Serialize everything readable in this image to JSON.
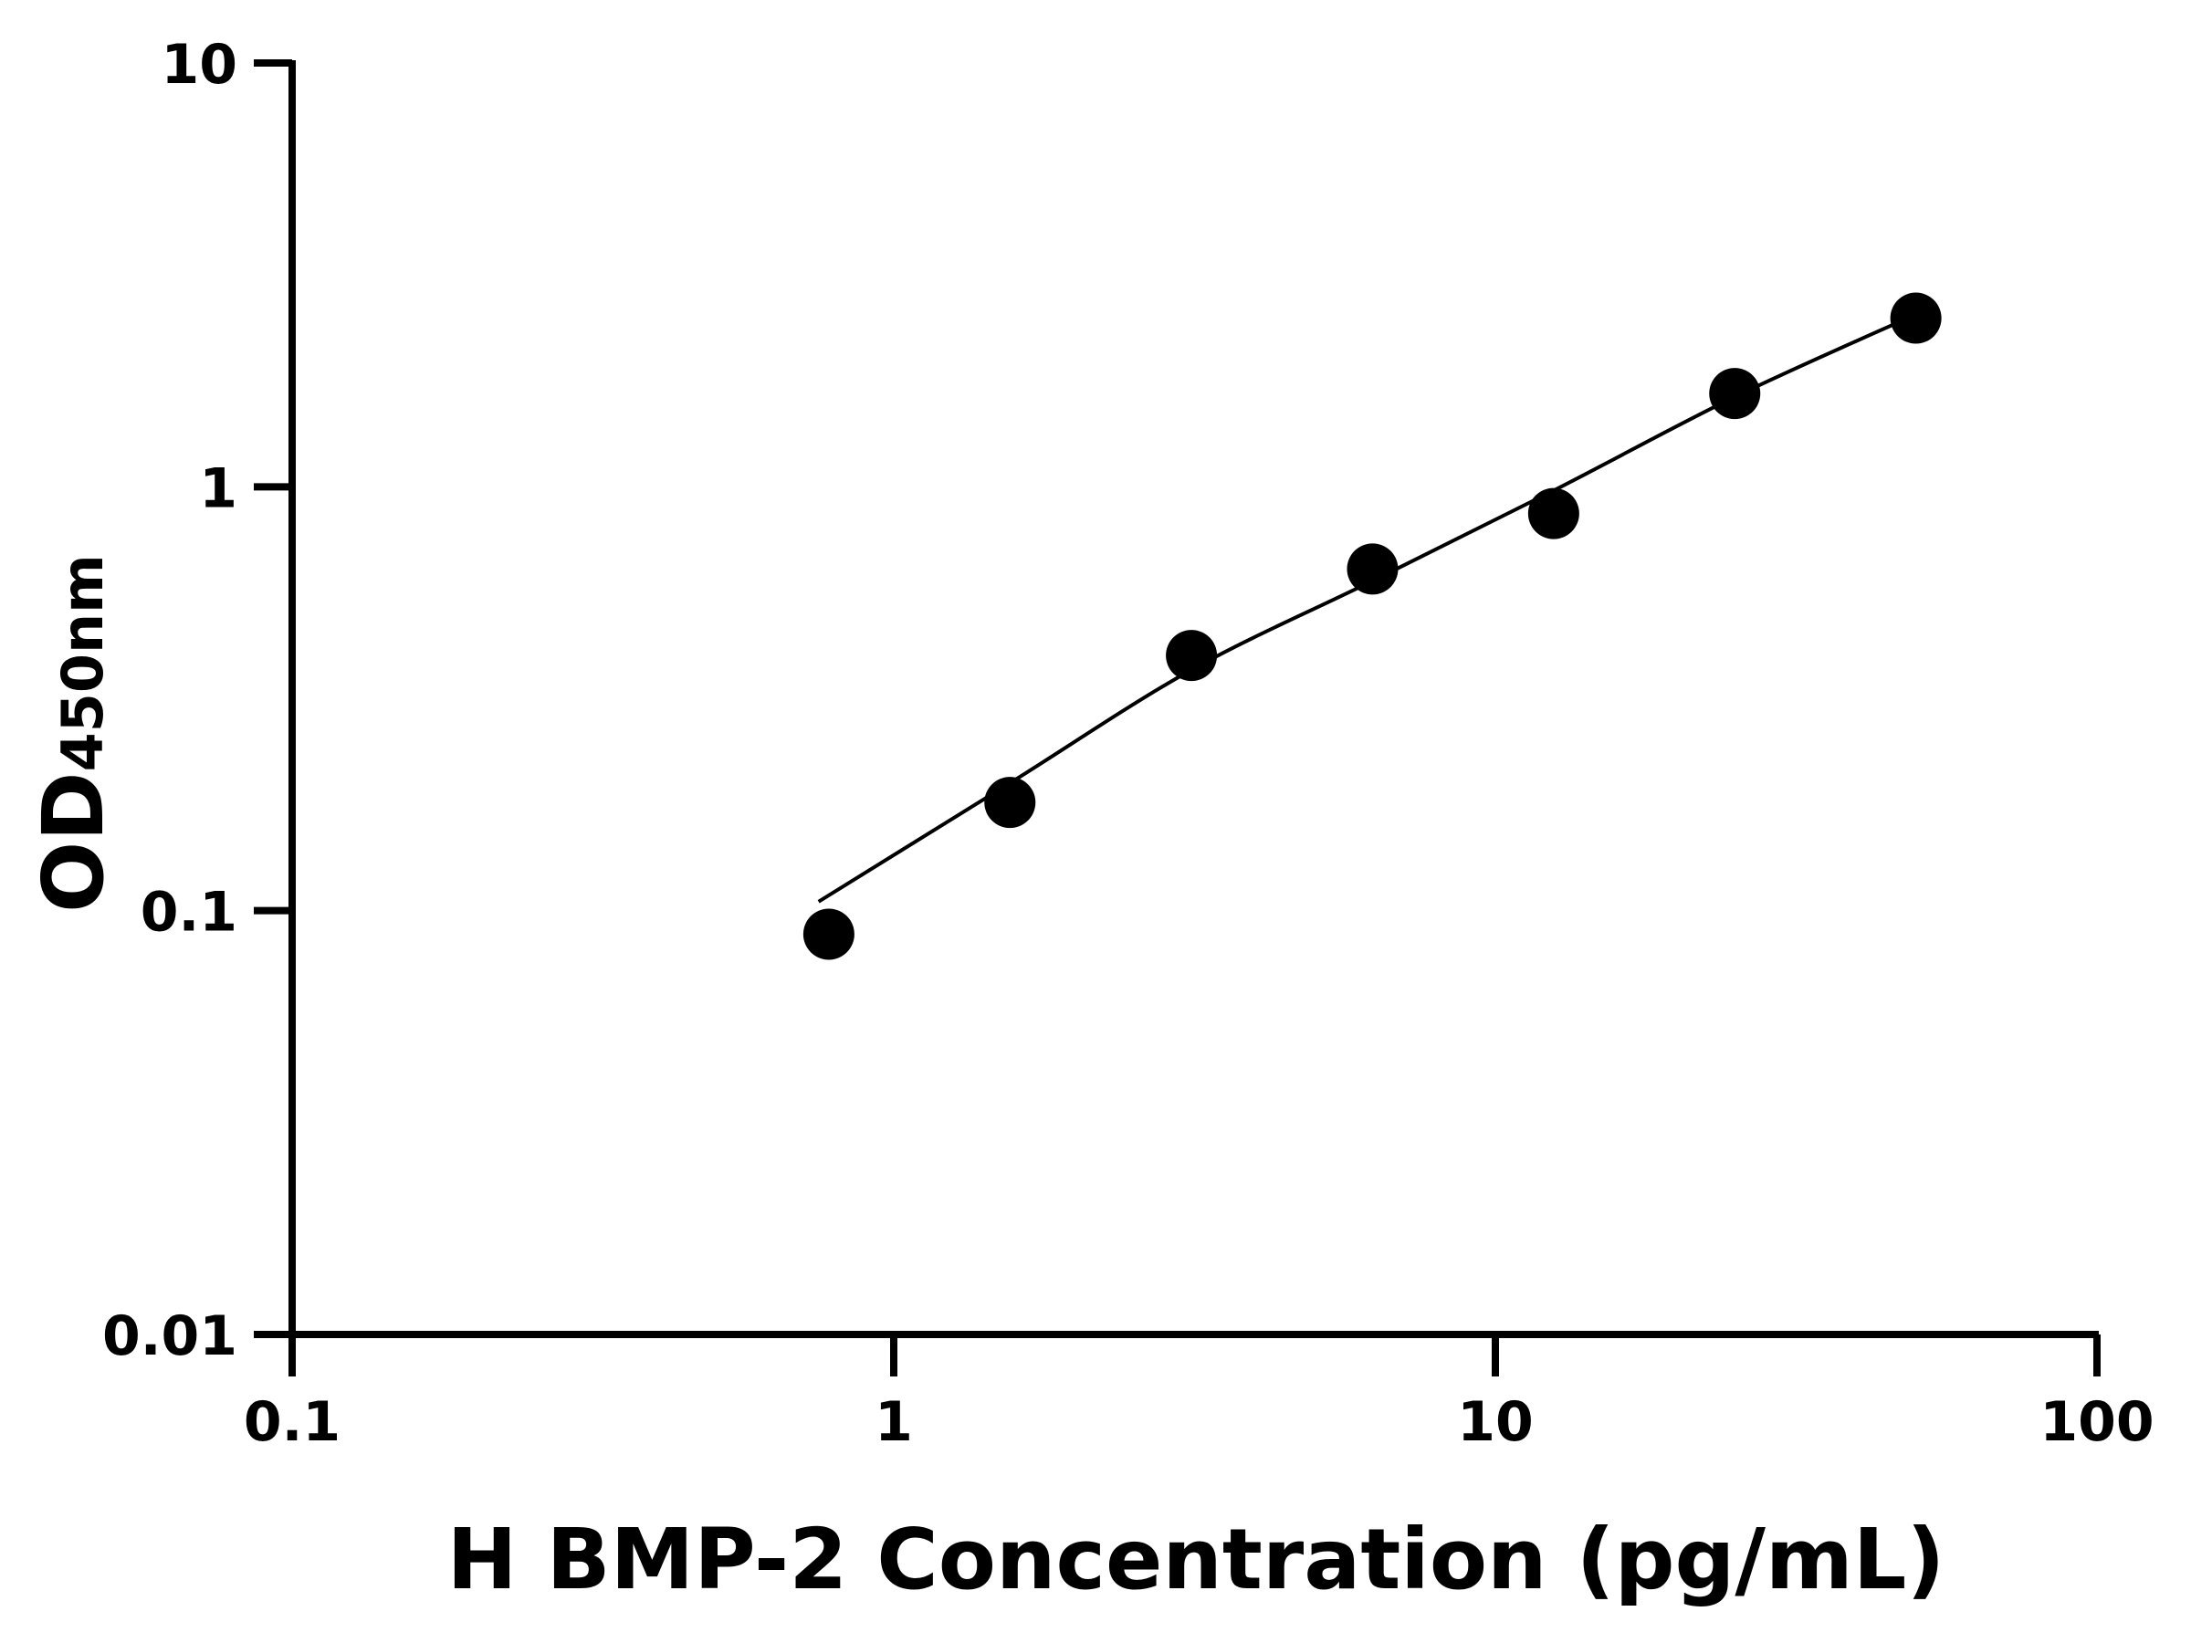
{
  "chart_data": {
    "type": "scatter",
    "title": "",
    "xlabel": "H BMP-2 Concentration (pg/mL)",
    "ylabel_main": "OD",
    "ylabel_sub": "450nm",
    "x_scale": "log",
    "y_scale": "log",
    "xlim": [
      0.1,
      100
    ],
    "ylim": [
      0.01,
      10
    ],
    "x_ticks": [
      "0.1",
      "1",
      "10",
      "100"
    ],
    "y_ticks": [
      "0.01",
      "0.1",
      "1",
      "10"
    ],
    "grid": false,
    "legend": "none",
    "colors": {
      "points": "#000000",
      "curve": "#000000",
      "axes": "#000000"
    },
    "points": {
      "x": [
        0.78,
        1.56,
        3.125,
        6.25,
        12.5,
        25,
        50
      ],
      "y": [
        0.088,
        0.18,
        0.4,
        0.64,
        0.865,
        1.66,
        2.5
      ]
    },
    "fit_curve": {
      "x": [
        0.75,
        1.56,
        3.125,
        6.25,
        12.5,
        25,
        50
      ],
      "y": [
        0.105,
        0.2,
        0.37,
        0.6,
        0.98,
        1.63,
        2.55
      ]
    }
  }
}
